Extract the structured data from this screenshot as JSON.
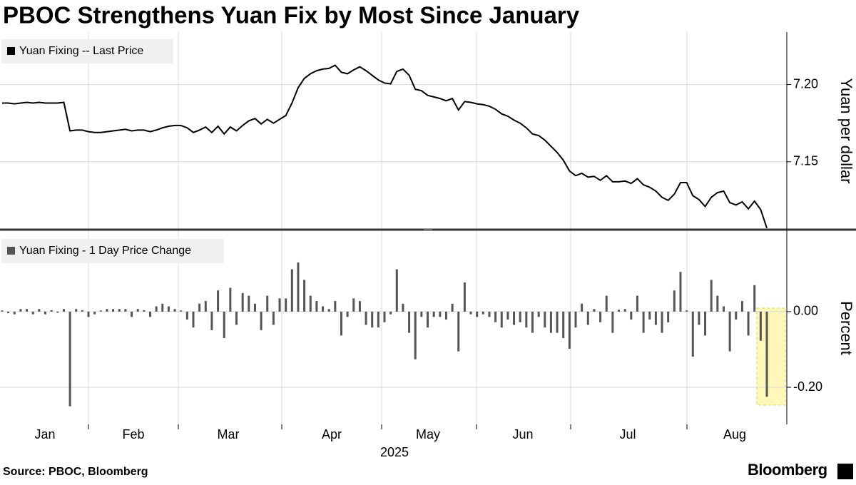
{
  "title": "PBOC Strengthens Yuan Fix by Most Since January",
  "source": "Source: PBOC, Bloomberg",
  "brand": "Bloomberg",
  "x_axis": {
    "labels": [
      "Jan",
      "Feb",
      "Mar",
      "Apr",
      "May",
      "Jun",
      "Jul",
      "Aug"
    ],
    "title": "2025"
  },
  "chart_data": [
    {
      "type": "line",
      "y_label": "Yuan per dollar",
      "ylim": [
        7.106,
        7.234
      ],
      "yticks": [
        7.15,
        {
          "value": 7.2,
          "label": "7.20"
        }
      ],
      "grid": true,
      "series": [
        {
          "name": "Yuan Fixing -- Last Price",
          "color": "#000000",
          "values": [
            7.188,
            7.188,
            7.1875,
            7.188,
            7.1885,
            7.188,
            7.1885,
            7.188,
            7.188,
            7.188,
            7.1885,
            7.17,
            7.1705,
            7.1705,
            7.1695,
            7.169,
            7.169,
            7.1695,
            7.17,
            7.1705,
            7.171,
            7.17,
            7.1705,
            7.1705,
            7.1695,
            7.1705,
            7.172,
            7.173,
            7.1735,
            7.1735,
            7.172,
            7.169,
            7.1705,
            7.1725,
            7.169,
            7.173,
            7.168,
            7.1725,
            7.17,
            7.1735,
            7.1765,
            7.178,
            7.1745,
            7.1775,
            7.175,
            7.1775,
            7.18,
            7.188,
            7.198,
            7.204,
            7.207,
            7.209,
            7.21,
            7.2105,
            7.2125,
            7.208,
            7.207,
            7.2095,
            7.2115,
            7.209,
            7.206,
            7.203,
            7.201,
            7.2005,
            7.2085,
            7.21,
            7.206,
            7.197,
            7.196,
            7.193,
            7.192,
            7.191,
            7.1895,
            7.191,
            7.1835,
            7.189,
            7.1885,
            7.1875,
            7.187,
            7.186,
            7.184,
            7.181,
            7.1795,
            7.177,
            7.175,
            7.172,
            7.168,
            7.167,
            7.164,
            7.16,
            7.156,
            7.151,
            7.144,
            7.141,
            7.1425,
            7.14,
            7.1405,
            7.138,
            7.141,
            7.137,
            7.137,
            7.1375,
            7.136,
            7.139,
            7.135,
            7.1335,
            7.131,
            7.127,
            7.125,
            7.129,
            7.1365,
            7.1365,
            7.128,
            7.1255,
            7.121,
            7.127,
            7.13,
            7.131,
            7.1235,
            7.122,
            7.124,
            7.1195,
            7.1245,
            7.119,
            7.107
          ]
        }
      ]
    },
    {
      "type": "bar",
      "y_label": "Percent",
      "ylim": [
        -0.298,
        0.211
      ],
      "yticks": [
        {
          "value": 0,
          "label": "0.00"
        },
        {
          "value": -0.2,
          "label": "-0.20"
        }
      ],
      "grid": true,
      "series": [
        {
          "name": "Yuan Fixing - 1 Day Price Change",
          "color": "#555555",
          "values": [
            0.003,
            -0.004,
            -0.007,
            0.007,
            0.007,
            -0.007,
            0.007,
            -0.007,
            0.004,
            -0.003,
            0.007,
            -0.25,
            0.007,
            0.004,
            -0.014,
            -0.007,
            0.003,
            0.007,
            0.007,
            0.007,
            0.007,
            -0.014,
            0.007,
            0.004,
            -0.014,
            0.014,
            0.021,
            0.014,
            0.007,
            0.003,
            -0.021,
            -0.042,
            0.021,
            0.028,
            -0.049,
            0.056,
            -0.07,
            0.063,
            -0.035,
            0.049,
            0.042,
            0.021,
            -0.049,
            0.042,
            -0.035,
            0.035,
            0.035,
            0.112,
            0.13,
            0.084,
            0.042,
            0.028,
            0.014,
            0.007,
            0.028,
            -0.063,
            -0.014,
            0.035,
            0.028,
            -0.035,
            -0.042,
            -0.042,
            -0.028,
            -0.007,
            0.112,
            0.021,
            -0.056,
            -0.126,
            -0.014,
            -0.042,
            -0.014,
            -0.014,
            -0.021,
            0.021,
            -0.105,
            0.077,
            -0.007,
            -0.014,
            -0.007,
            -0.014,
            -0.028,
            -0.042,
            -0.021,
            -0.035,
            -0.028,
            -0.042,
            -0.056,
            -0.014,
            -0.042,
            -0.056,
            -0.056,
            -0.07,
            -0.098,
            -0.042,
            0.021,
            -0.035,
            0.007,
            -0.028,
            0.042,
            -0.056,
            0.005,
            0.007,
            -0.021,
            0.042,
            -0.056,
            -0.021,
            -0.035,
            -0.056,
            -0.028,
            0.056,
            0.105,
            0.003,
            -0.119,
            -0.035,
            -0.063,
            0.084,
            0.042,
            0.014,
            -0.105,
            -0.021,
            0.028,
            -0.063,
            0.07,
            -0.077,
            -0.225
          ]
        }
      ]
    }
  ]
}
